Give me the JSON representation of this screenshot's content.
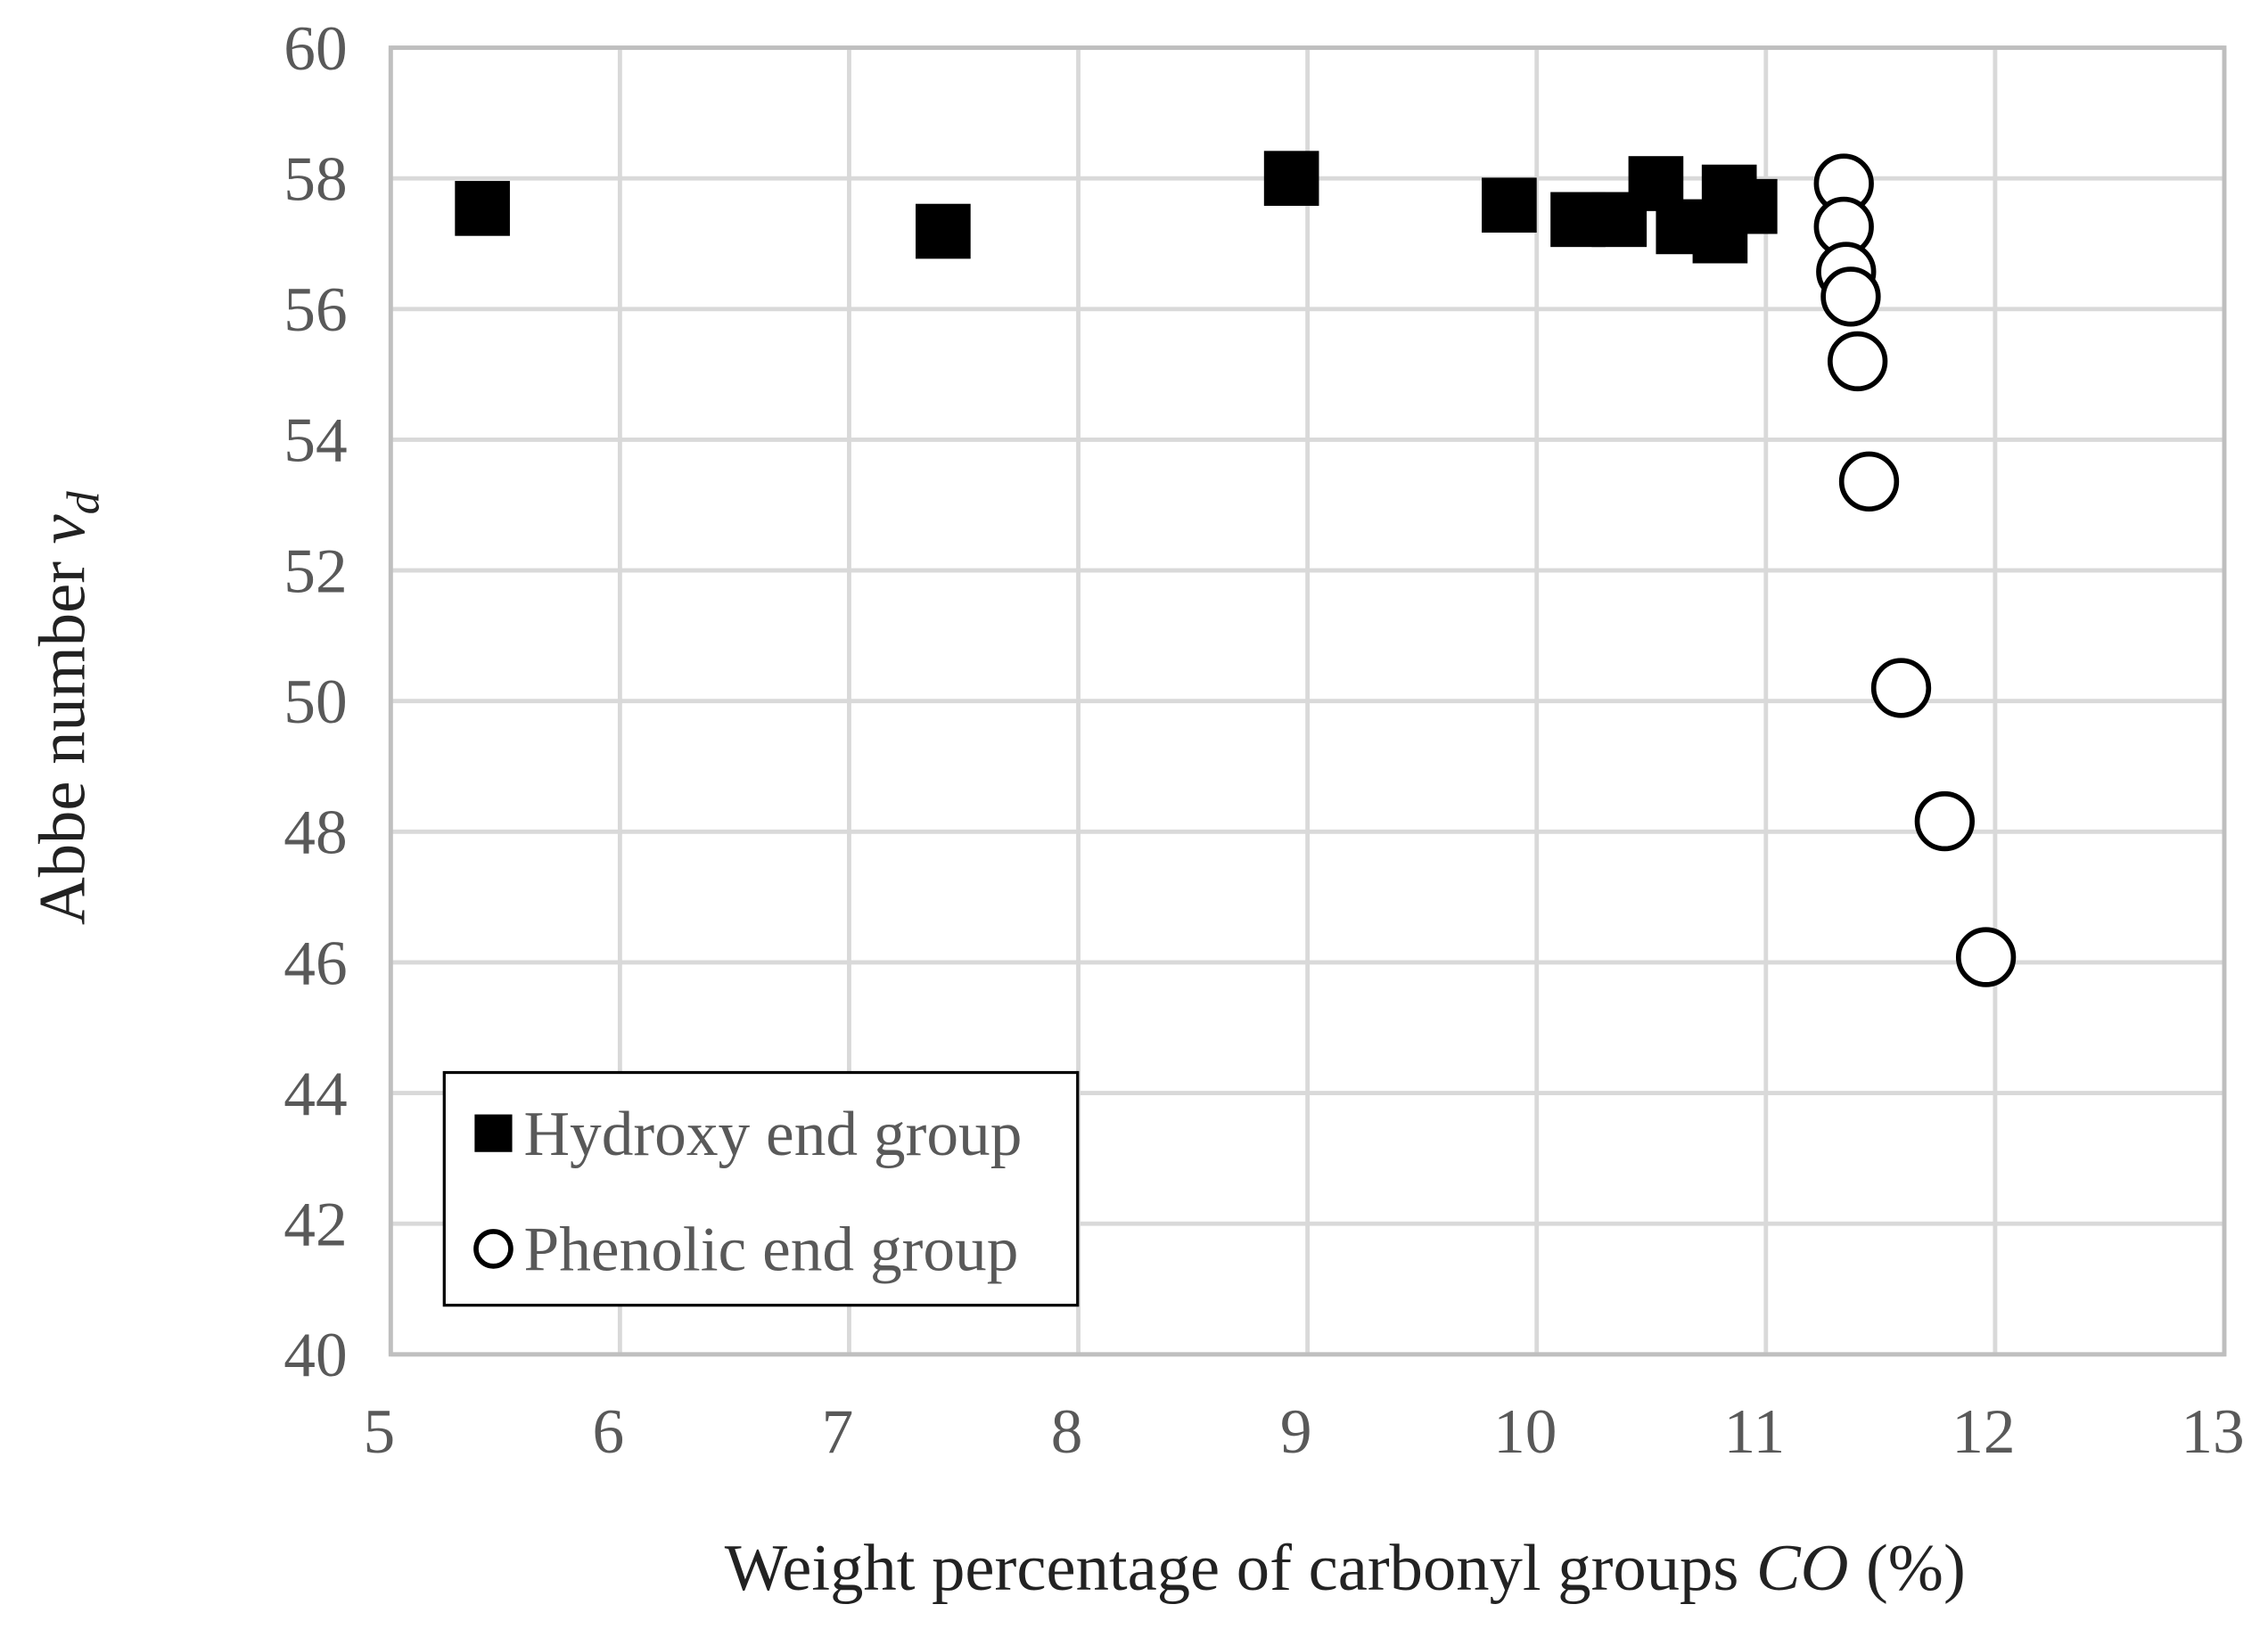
{
  "chart_data": {
    "type": "scatter",
    "x_label": [
      "Weight percentage of carbonyl groups",
      "CO",
      "(%)"
    ],
    "y_label": [
      "Abbe number",
      "v",
      "d"
    ],
    "xlim": [
      5,
      13
    ],
    "xticks": [
      5,
      6,
      7,
      8,
      9,
      10,
      11,
      12,
      13
    ],
    "ylim": [
      40,
      60
    ],
    "yticks": [
      40,
      42,
      44,
      46,
      48,
      50,
      52,
      54,
      56,
      58,
      60
    ],
    "grid": true,
    "legend": "bottom-left",
    "series": [
      {
        "name": "Hydroxy end group",
        "marker": "square",
        "color": "#000000",
        "x": [
          5.4,
          7.41,
          8.93,
          9.88,
          10.18,
          10.36,
          10.52,
          10.64,
          10.8,
          10.84,
          10.93
        ],
        "values": [
          57.54,
          57.19,
          58.0,
          57.59,
          57.37,
          57.37,
          57.92,
          57.26,
          57.12,
          57.79,
          57.57
        ]
      },
      {
        "name": "Phenolic end group",
        "marker": "circle",
        "color": "#000000",
        "x": [
          11.34,
          11.34,
          11.35,
          11.37,
          11.4,
          11.45,
          11.59,
          11.78,
          11.96
        ],
        "values": [
          57.92,
          57.26,
          56.57,
          56.19,
          55.2,
          53.36,
          50.2,
          48.16,
          46.08
        ]
      }
    ]
  }
}
